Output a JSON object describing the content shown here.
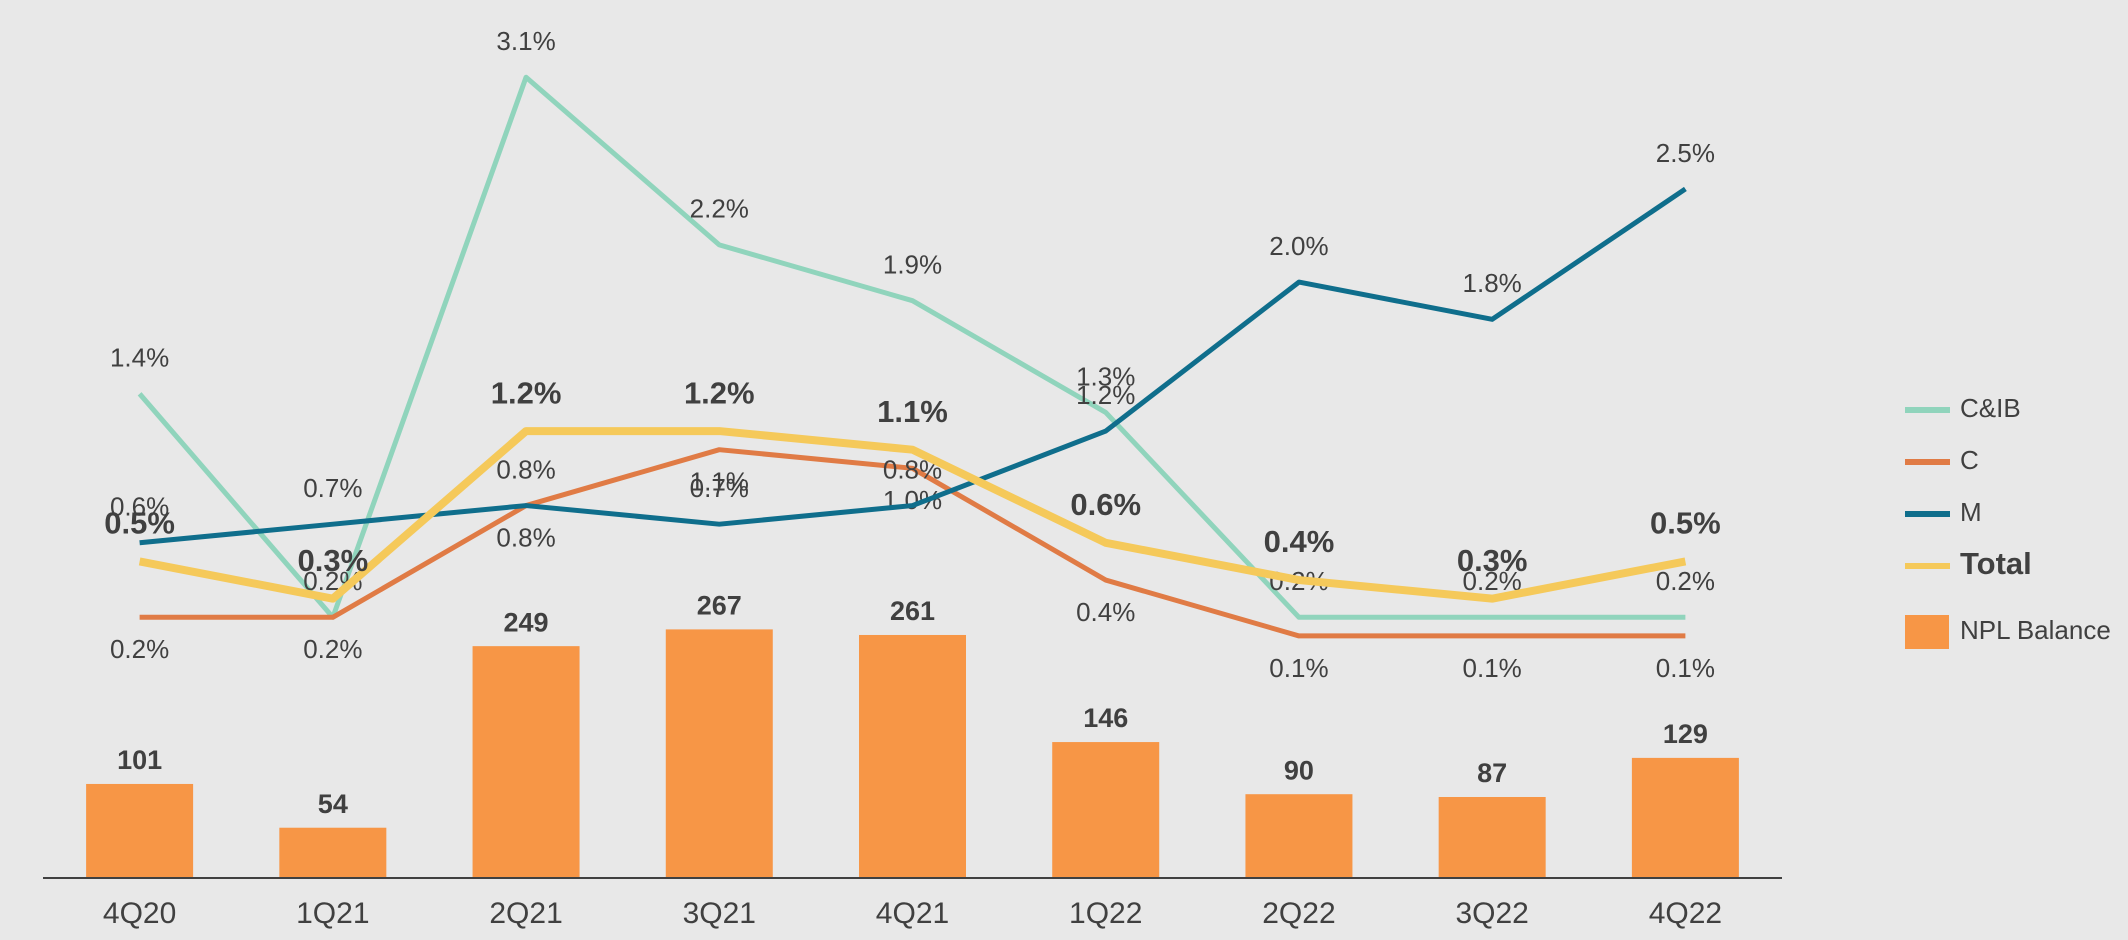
{
  "chart_data": {
    "type": "bar",
    "categories": [
      "4Q20",
      "1Q21",
      "2Q21",
      "3Q21",
      "4Q21",
      "1Q22",
      "2Q22",
      "3Q22",
      "4Q22"
    ],
    "ylim": [
      0,
      900
    ],
    "y2lim": [
      -1.2,
      3.3
    ],
    "series": [
      {
        "name": "NPL Balance",
        "type": "bar",
        "color": "#f79646",
        "values": [
          101,
          54,
          249,
          267,
          261,
          146,
          90,
          87,
          129
        ]
      },
      {
        "name": "C&IB",
        "type": "line",
        "axis": "y2",
        "color": "#90d4bc",
        "values": [
          1.4,
          0.2,
          3.1,
          2.2,
          1.9,
          1.3,
          0.2,
          0.2,
          0.2
        ],
        "value_labels": [
          "1.4%",
          "0.2%",
          "3.1%",
          "2.2%",
          "1.9%",
          "1.3%",
          "0.2%",
          "0.2%",
          "0.2%"
        ]
      },
      {
        "name": "C",
        "type": "line",
        "axis": "y2",
        "color": "#e07b45",
        "values": [
          0.2,
          0.2,
          0.8,
          1.1,
          1.0,
          0.4,
          0.1,
          0.1,
          0.1
        ],
        "value_labels": [
          "0.2%",
          "0.2%",
          "0.8%",
          "1.1%",
          "1.0%",
          "0.4%",
          "0.1%",
          "0.1%",
          "0.1%"
        ]
      },
      {
        "name": "M",
        "type": "line",
        "axis": "y2",
        "color": "#0f6e8c",
        "values": [
          0.6,
          0.7,
          0.8,
          0.7,
          0.8,
          1.2,
          2.0,
          1.8,
          2.5
        ],
        "value_labels": [
          "0.6%",
          "0.7%",
          "0.8%",
          "0.7%",
          "0.8%",
          "1.2%",
          "2.0%",
          "1.8%",
          "2.5%"
        ]
      },
      {
        "name": "Total",
        "type": "line",
        "axis": "y2",
        "color": "#f5c95a",
        "values": [
          0.5,
          0.3,
          1.2,
          1.2,
          1.1,
          0.6,
          0.4,
          0.3,
          0.5
        ],
        "value_labels": [
          "0.5%",
          "0.3%",
          "1.2%",
          "1.2%",
          "1.1%",
          "0.6%",
          "0.4%",
          "0.3%",
          "0.5%"
        ]
      }
    ]
  }
}
